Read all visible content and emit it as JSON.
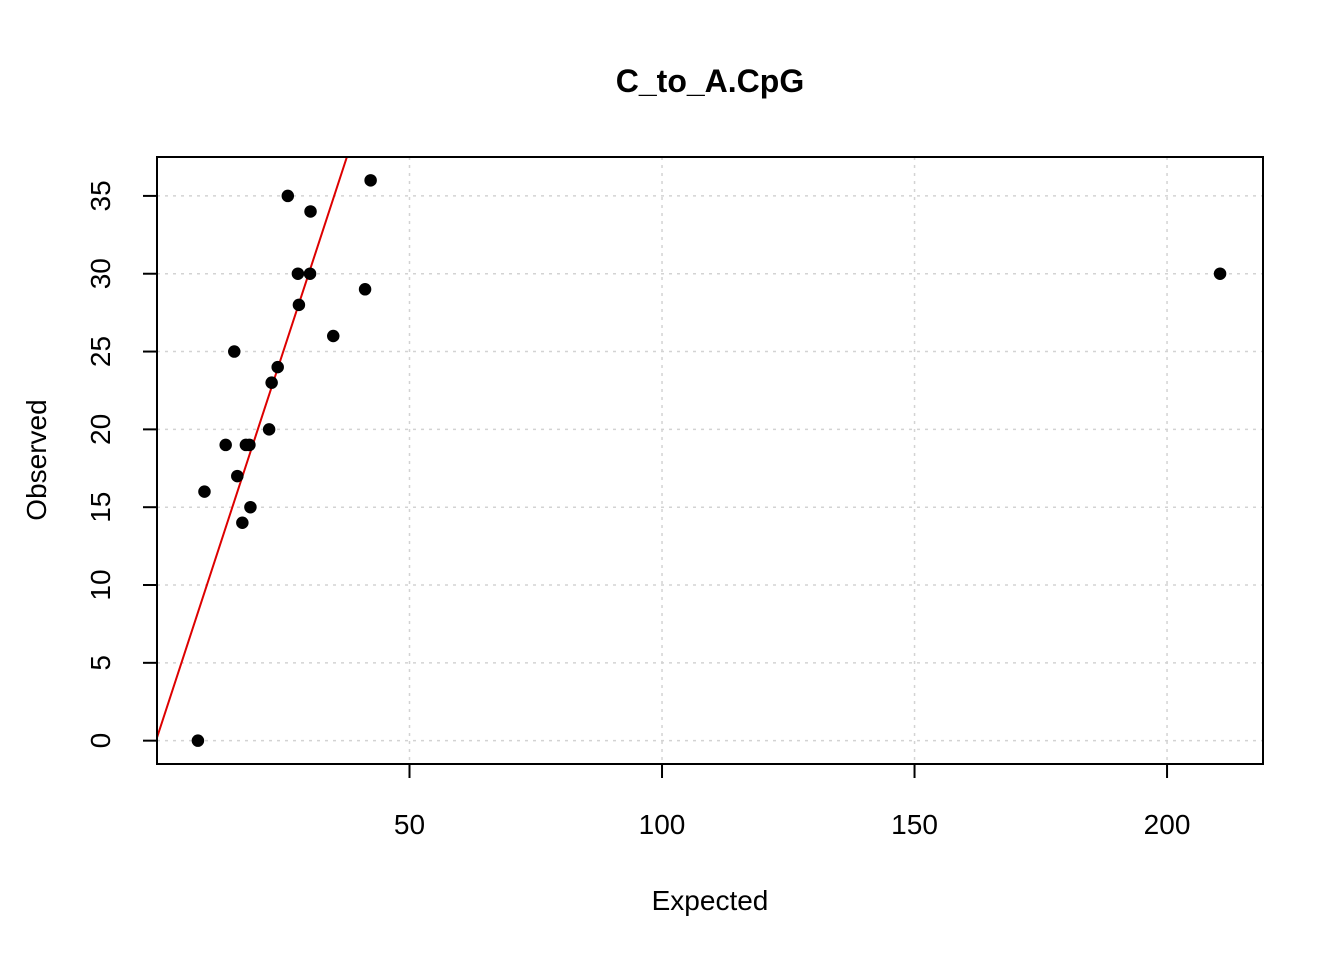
{
  "chart_data": {
    "type": "scatter",
    "title": "C_to_A.CpG",
    "xlabel": "Expected",
    "ylabel": "Observed",
    "xlim": [
      0,
      219
    ],
    "ylim": [
      -1.5,
      37.5
    ],
    "x_ticks": [
      50,
      100,
      150,
      200
    ],
    "y_ticks": [
      0,
      5,
      10,
      15,
      20,
      25,
      30,
      35
    ],
    "grid": true,
    "point_color": "#000000",
    "points": [
      {
        "x": 8.1,
        "y": 0
      },
      {
        "x": 9.4,
        "y": 16
      },
      {
        "x": 13.6,
        "y": 19
      },
      {
        "x": 15.3,
        "y": 25
      },
      {
        "x": 15.9,
        "y": 17
      },
      {
        "x": 16.9,
        "y": 14
      },
      {
        "x": 17.6,
        "y": 19
      },
      {
        "x": 18.3,
        "y": 19
      },
      {
        "x": 18.5,
        "y": 15
      },
      {
        "x": 22.2,
        "y": 20
      },
      {
        "x": 22.7,
        "y": 23
      },
      {
        "x": 23.9,
        "y": 24
      },
      {
        "x": 25.9,
        "y": 35
      },
      {
        "x": 27.9,
        "y": 30
      },
      {
        "x": 28.1,
        "y": 28
      },
      {
        "x": 30.3,
        "y": 30
      },
      {
        "x": 30.4,
        "y": 34
      },
      {
        "x": 34.9,
        "y": 26
      },
      {
        "x": 41.2,
        "y": 29
      },
      {
        "x": 42.3,
        "y": 36
      },
      {
        "x": 210.5,
        "y": 30
      }
    ],
    "fit_line": {
      "color": "#dd0000",
      "from": {
        "x": 0,
        "y": 0.2
      },
      "to": {
        "x": 37.6,
        "y": 37.5
      }
    }
  }
}
